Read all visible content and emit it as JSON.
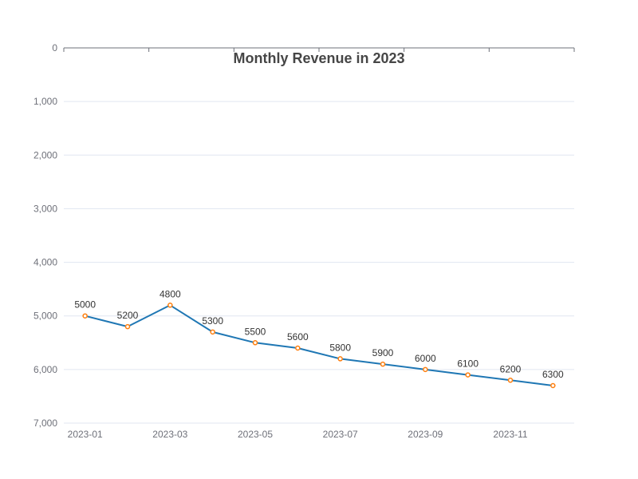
{
  "chart_data": {
    "type": "line",
    "title": "Monthly Revenue in 2023",
    "x": [
      "2023-01",
      "2023-02",
      "2023-03",
      "2023-04",
      "2023-05",
      "2023-06",
      "2023-07",
      "2023-08",
      "2023-09",
      "2023-10",
      "2023-11",
      "2023-12"
    ],
    "x_tick_labels": [
      "2023-01",
      "2023-03",
      "2023-05",
      "2023-07",
      "2023-09",
      "2023-11"
    ],
    "series": [
      {
        "values": [
          5000,
          5200,
          4800,
          5300,
          5500,
          5600,
          5800,
          5900,
          6000,
          6100,
          6200,
          6300
        ]
      }
    ],
    "y_ticks": [
      0,
      1000,
      2000,
      3000,
      4000,
      5000,
      6000,
      7000
    ],
    "y_tick_labels": [
      "0",
      "1,000",
      "2,000",
      "3,000",
      "4,000",
      "5,000",
      "6,000",
      "7,000"
    ],
    "ylim": [
      0,
      7000
    ],
    "y_inverted": true,
    "x_axis_position": "top",
    "grid": true,
    "line_color": "#1f77b4",
    "marker_color": "#ff7f0e"
  }
}
